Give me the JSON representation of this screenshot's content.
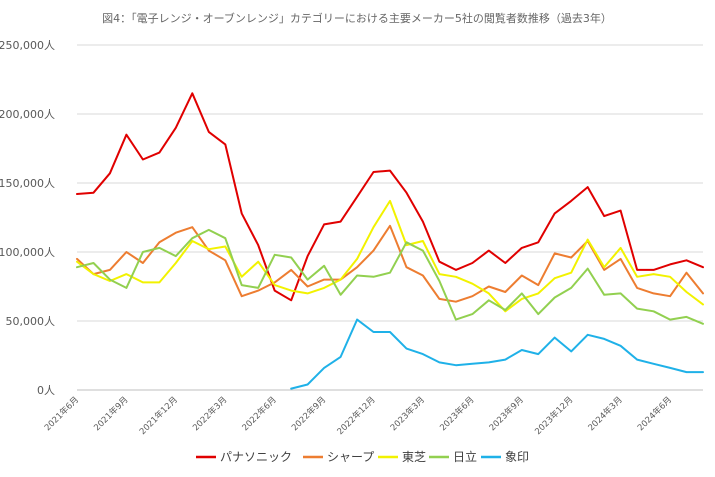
{
  "chart_data": {
    "type": "line",
    "title": "図4：「電子レンジ・オーブンレンジ」カテゴリーにおける主要メーカー5社の閲覧者数推移（過去3年）",
    "xlabel": "",
    "ylabel": "",
    "ylim": [
      0,
      250000
    ],
    "yticks": [
      0,
      50000,
      100000,
      150000,
      200000,
      250000
    ],
    "ytick_labels": [
      "0人",
      "50,000人",
      "100,000人",
      "150,000人",
      "200,000人",
      "250,000人"
    ],
    "grid": true,
    "legend_position": "bottom",
    "x": [
      "2021年6月",
      "2021年7月",
      "2021年8月",
      "2021年9月",
      "2021年10月",
      "2021年11月",
      "2021年12月",
      "2022年1月",
      "2022年2月",
      "2022年3月",
      "2022年4月",
      "2022年5月",
      "2022年6月",
      "2022年7月",
      "2022年8月",
      "2022年9月",
      "2022年10月",
      "2022年11月",
      "2022年12月",
      "2023年1月",
      "2023年2月",
      "2023年3月",
      "2023年4月",
      "2023年5月",
      "2023年6月",
      "2023年7月",
      "2023年8月",
      "2023年9月",
      "2023年10月",
      "2023年11月",
      "2023年12月",
      "2024年1月",
      "2024年2月",
      "2024年3月",
      "2024年4月",
      "2024年5月",
      "2024年6月",
      "2024年7月",
      "2024年8月"
    ],
    "x_tick_labels": [
      "2021年6月",
      "2021年9月",
      "2021年12月",
      "2022年3月",
      "2022年6月",
      "2022年9月",
      "2022年12月",
      "2023年3月",
      "2023年6月",
      "2023年9月",
      "2023年12月",
      "2024年3月",
      "2024年6月"
    ],
    "series": [
      {
        "name": "パナソニック",
        "color": "#e00000",
        "values": [
          142000,
          143000,
          157000,
          185000,
          167000,
          172000,
          190000,
          215000,
          187000,
          178000,
          128000,
          105000,
          72000,
          65000,
          97000,
          120000,
          122000,
          140000,
          158000,
          159000,
          143000,
          122000,
          93000,
          87000,
          92000,
          101000,
          92000,
          103000,
          107000,
          128000,
          137000,
          147000,
          126000,
          130000,
          87000,
          87000,
          91000,
          94000,
          89000
        ]
      },
      {
        "name": "シャープ",
        "color": "#ed7d31",
        "values": [
          95000,
          84000,
          87000,
          100000,
          92000,
          107000,
          114000,
          118000,
          101000,
          94000,
          68000,
          72000,
          78000,
          87000,
          75000,
          80000,
          80000,
          89000,
          101000,
          119000,
          89000,
          83000,
          66000,
          64000,
          68000,
          75000,
          71000,
          83000,
          76000,
          99000,
          96000,
          108000,
          87000,
          95000,
          74000,
          70000,
          68000,
          85000,
          70000
        ]
      },
      {
        "name": "東芝",
        "color": "#f2f200",
        "values": [
          93000,
          84000,
          79000,
          84000,
          78000,
          78000,
          92000,
          108000,
          102000,
          104000,
          82000,
          93000,
          76000,
          72000,
          70000,
          74000,
          80000,
          95000,
          118000,
          137000,
          105000,
          108000,
          84000,
          82000,
          77000,
          70000,
          57000,
          66000,
          70000,
          81000,
          85000,
          109000,
          89000,
          103000,
          82000,
          84000,
          82000,
          71000,
          62000
        ]
      },
      {
        "name": "日立",
        "color": "#92d050",
        "values": [
          89000,
          92000,
          80000,
          74000,
          100000,
          103000,
          97000,
          110000,
          116000,
          110000,
          76000,
          74000,
          98000,
          96000,
          80000,
          90000,
          69000,
          83000,
          82000,
          85000,
          107000,
          101000,
          79000,
          51000,
          55000,
          65000,
          58000,
          70000,
          55000,
          67000,
          74000,
          88000,
          69000,
          70000,
          59000,
          57000,
          51000,
          53000,
          48000
        ]
      },
      {
        "name": "象印",
        "color": "#1fb1e8",
        "values": [
          null,
          null,
          null,
          null,
          null,
          null,
          null,
          null,
          null,
          null,
          null,
          null,
          null,
          1000,
          4000,
          16000,
          24000,
          51000,
          42000,
          42000,
          30000,
          26000,
          20000,
          18000,
          19000,
          20000,
          22000,
          29000,
          26000,
          38000,
          28000,
          40000,
          37000,
          32000,
          22000,
          19000,
          16000,
          13000,
          13000
        ]
      }
    ]
  }
}
